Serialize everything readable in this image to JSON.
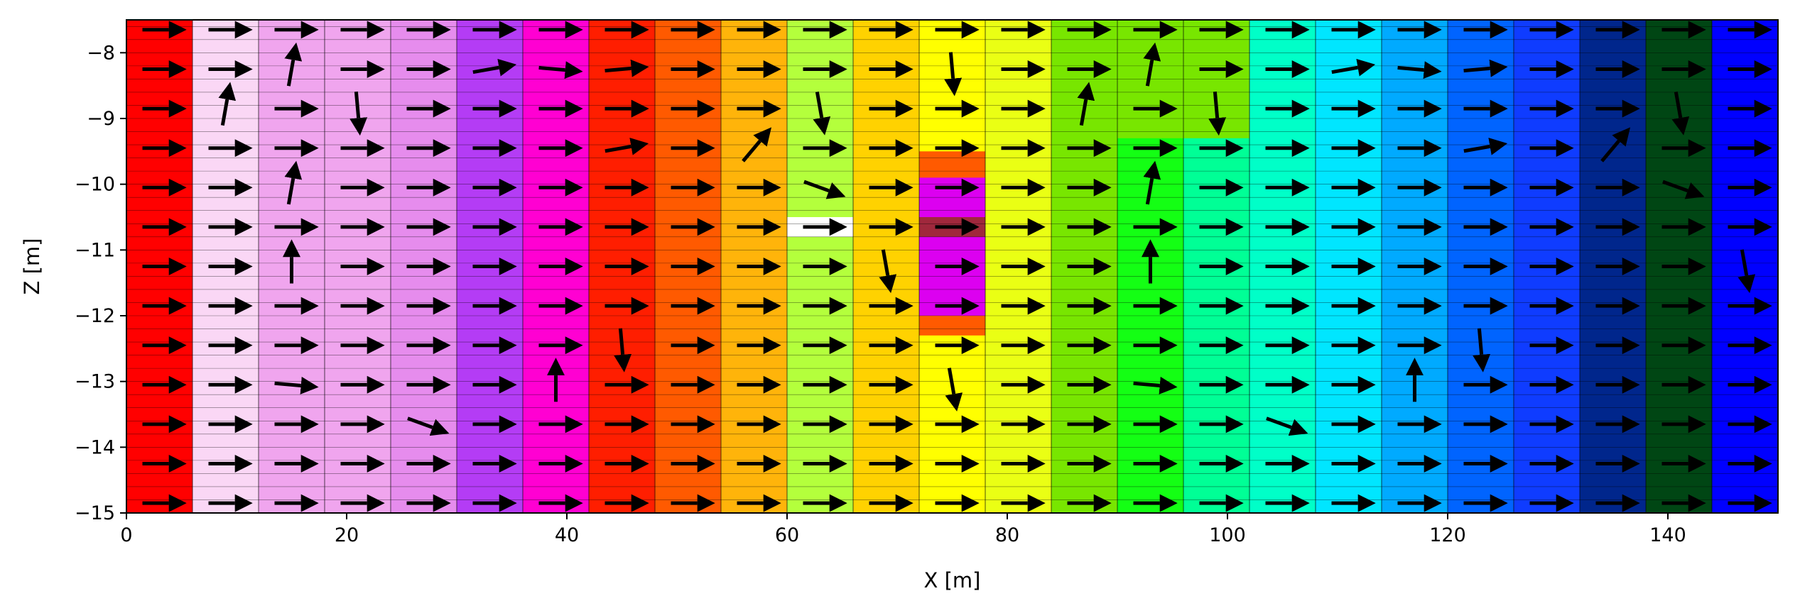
{
  "chart_data": {
    "type": "heatmap",
    "xlabel": "X [m]",
    "ylabel": "Z [m]",
    "xlim": [
      0,
      150
    ],
    "ylim": [
      -15,
      -7.5
    ],
    "xticks": [
      0,
      20,
      40,
      60,
      80,
      100,
      120,
      140
    ],
    "yticks": [
      -15,
      -14,
      -13,
      -12,
      -11,
      -10,
      -9,
      -8
    ],
    "column_width_m": 6,
    "row_height_m": 0.2,
    "columns": [
      {
        "x0": 0,
        "x1": 6,
        "color": "#ff0000"
      },
      {
        "x0": 6,
        "x1": 12,
        "color": "#fad7f5"
      },
      {
        "x0": 12,
        "x1": 18,
        "color": "#f0a5ee"
      },
      {
        "x0": 18,
        "x1": 24,
        "color": "#f0a5ee"
      },
      {
        "x0": 24,
        "x1": 30,
        "color": "#e68ced"
      },
      {
        "x0": 30,
        "x1": 36,
        "color": "#b43cf5"
      },
      {
        "x0": 36,
        "x1": 42,
        "color": "#ff00d2"
      },
      {
        "x0": 42,
        "x1": 48,
        "color": "#ff1e00"
      },
      {
        "x0": 48,
        "x1": 54,
        "color": "#ff5a00"
      },
      {
        "x0": 54,
        "x1": 60,
        "color": "#ffb40a"
      },
      {
        "x0": 60,
        "x1": 66,
        "color": "#b4ff3c"
      },
      {
        "x0": 66,
        "x1": 72,
        "color": "#ffd200"
      },
      {
        "x0": 72,
        "x1": 78,
        "color": "#ffff00"
      },
      {
        "x0": 78,
        "x1": 84,
        "color": "#eaff14"
      },
      {
        "x0": 84,
        "x1": 90,
        "color": "#78e600"
      },
      {
        "x0": 90,
        "x1": 96,
        "color": "#14ff14"
      },
      {
        "x0": 96,
        "x1": 102,
        "color": "#00ff96"
      },
      {
        "x0": 102,
        "x1": 108,
        "color": "#00ffc8"
      },
      {
        "x0": 108,
        "x1": 114,
        "color": "#00e6ff"
      },
      {
        "x0": 114,
        "x1": 120,
        "color": "#00aaff"
      },
      {
        "x0": 120,
        "x1": 126,
        "color": "#0064ff"
      },
      {
        "x0": 126,
        "x1": 132,
        "color": "#0f3cff"
      },
      {
        "x0": 132,
        "x1": 138,
        "color": "#00268c"
      },
      {
        "x0": 138,
        "x1": 144,
        "color": "#004614"
      },
      {
        "x0": 144,
        "x1": 150,
        "color": "#0000ff"
      }
    ],
    "patches": [
      {
        "x0": 84,
        "x1": 102,
        "y0": -9.3,
        "y1": -7.5,
        "color": "#78e600"
      },
      {
        "x0": 60,
        "x1": 66,
        "y0": -10.8,
        "y1": -10.5,
        "color": "#ffffff"
      },
      {
        "x0": 72,
        "x1": 78,
        "y0": -12.3,
        "y1": -9.5,
        "color": "#ff5a00"
      },
      {
        "x0": 72,
        "x1": 78,
        "y0": -12.0,
        "y1": -9.9,
        "color": "#dc00f0"
      },
      {
        "x0": 72,
        "x1": 78,
        "y0": -10.8,
        "y1": -10.5,
        "color": "#a0283c"
      }
    ],
    "arrow_row_z": [
      -7.65,
      -8.25,
      -8.85,
      -9.45,
      -10.05,
      -10.65,
      -11.25,
      -11.85,
      -12.45,
      -13.05,
      -13.65,
      -14.25,
      -14.85
    ],
    "arrows_deg": [
      [
        0,
        0,
        0,
        0,
        0,
        0,
        0,
        0,
        0,
        0,
        0,
        0,
        0
      ],
      [
        0,
        0,
        80,
        0,
        0,
        10,
        -5,
        5,
        0,
        0,
        0,
        0,
        -85
      ],
      [
        0,
        80,
        0,
        -85,
        0,
        0,
        0,
        0,
        0,
        0,
        -80,
        0,
        0
      ],
      [
        0,
        0,
        0,
        0,
        0,
        0,
        0,
        10,
        0,
        50,
        0,
        0,
        0
      ],
      [
        0,
        0,
        80,
        0,
        0,
        0,
        0,
        0,
        0,
        0,
        -20,
        0,
        0
      ],
      [
        0,
        0,
        0,
        0,
        0,
        0,
        0,
        0,
        0,
        0,
        0,
        0,
        0
      ],
      [
        0,
        0,
        90,
        0,
        0,
        0,
        0,
        0,
        0,
        0,
        0,
        -80,
        0
      ],
      [
        0,
        0,
        0,
        0,
        0,
        0,
        0,
        0,
        0,
        0,
        0,
        0,
        0
      ],
      [
        0,
        0,
        0,
        0,
        0,
        0,
        0,
        -85,
        0,
        0,
        0,
        0,
        0
      ],
      [
        0,
        0,
        -5,
        0,
        0,
        0,
        90,
        0,
        0,
        0,
        0,
        0,
        -80
      ],
      [
        0,
        0,
        0,
        0,
        -20,
        0,
        0,
        0,
        0,
        0,
        0,
        0,
        0
      ],
      [
        0,
        0,
        0,
        0,
        0,
        0,
        0,
        0,
        0,
        0,
        0,
        0,
        0
      ],
      [
        0,
        0,
        0,
        0,
        0,
        0,
        0,
        0,
        0,
        0,
        0,
        0,
        0
      ]
    ]
  }
}
